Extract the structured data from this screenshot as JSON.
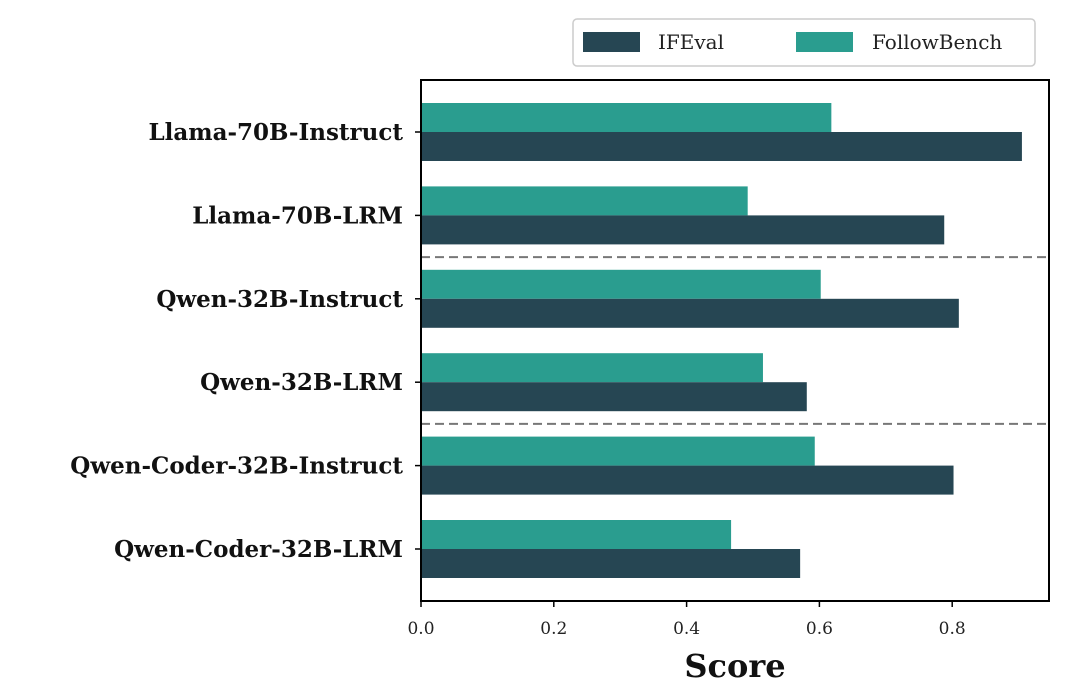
{
  "chart_data": {
    "type": "bar",
    "orientation": "horizontal",
    "categories": [
      "Llama-70B-Instruct",
      "Llama-70B-LRM",
      "Qwen-32B-Instruct",
      "Qwen-32B-LRM",
      "Qwen-Coder-32B-Instruct",
      "Qwen-Coder-32B-LRM"
    ],
    "series": [
      {
        "name": "IFEval",
        "color": "#264653",
        "values": [
          0.905,
          0.788,
          0.81,
          0.581,
          0.802,
          0.571
        ]
      },
      {
        "name": "FollowBench",
        "color": "#2a9d8f",
        "values": [
          0.618,
          0.492,
          0.602,
          0.515,
          0.593,
          0.467
        ]
      }
    ],
    "xlabel": "Score",
    "xlim": [
      0,
      0.95
    ],
    "xticks": [
      "0.0",
      "0.2",
      "0.4",
      "0.6",
      "0.8"
    ],
    "xtick_values": [
      0,
      0.2,
      0.4,
      0.6,
      0.8
    ],
    "group_separators_after": [
      1,
      3
    ],
    "legend_position": "top-right",
    "grid": false
  }
}
